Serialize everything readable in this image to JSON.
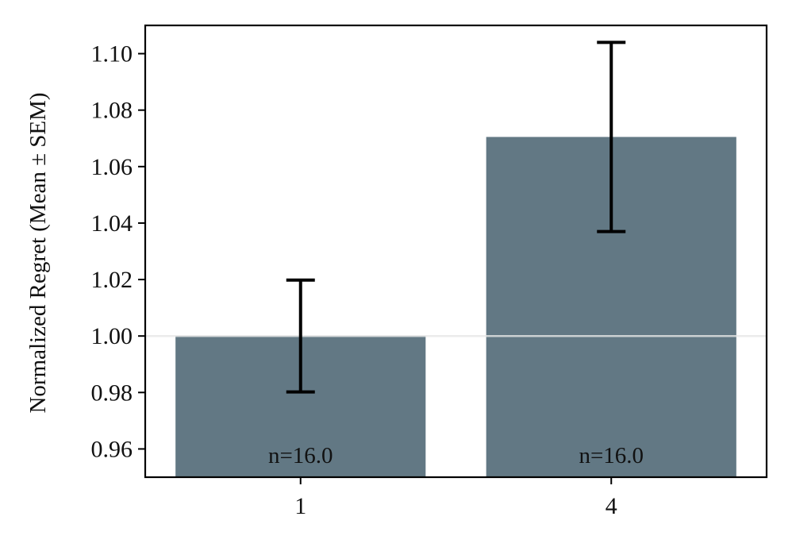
{
  "chart_data": {
    "type": "bar",
    "categories": [
      "1",
      "4"
    ],
    "values": [
      1.0,
      1.0705
    ],
    "error": [
      0.0198,
      0.0335
    ],
    "bar_labels": [
      "n=16.0",
      "n=16.0"
    ],
    "title": "",
    "xlabel": "",
    "ylabel": "Normalized Regret (Mean ± SEM)",
    "ylim": [
      0.95,
      1.11
    ],
    "yticks": [
      0.96,
      0.98,
      1.0,
      1.02,
      1.04,
      1.06,
      1.08,
      1.1
    ],
    "ytick_labels": [
      "0.96",
      "0.98",
      "1.00",
      "1.02",
      "1.04",
      "1.06",
      "1.08",
      "1.10"
    ],
    "reference_line": 1.0,
    "grid": false,
    "bar_color": "#627884",
    "error_color": "#000000",
    "reference_line_color": "#e6e6e6"
  }
}
